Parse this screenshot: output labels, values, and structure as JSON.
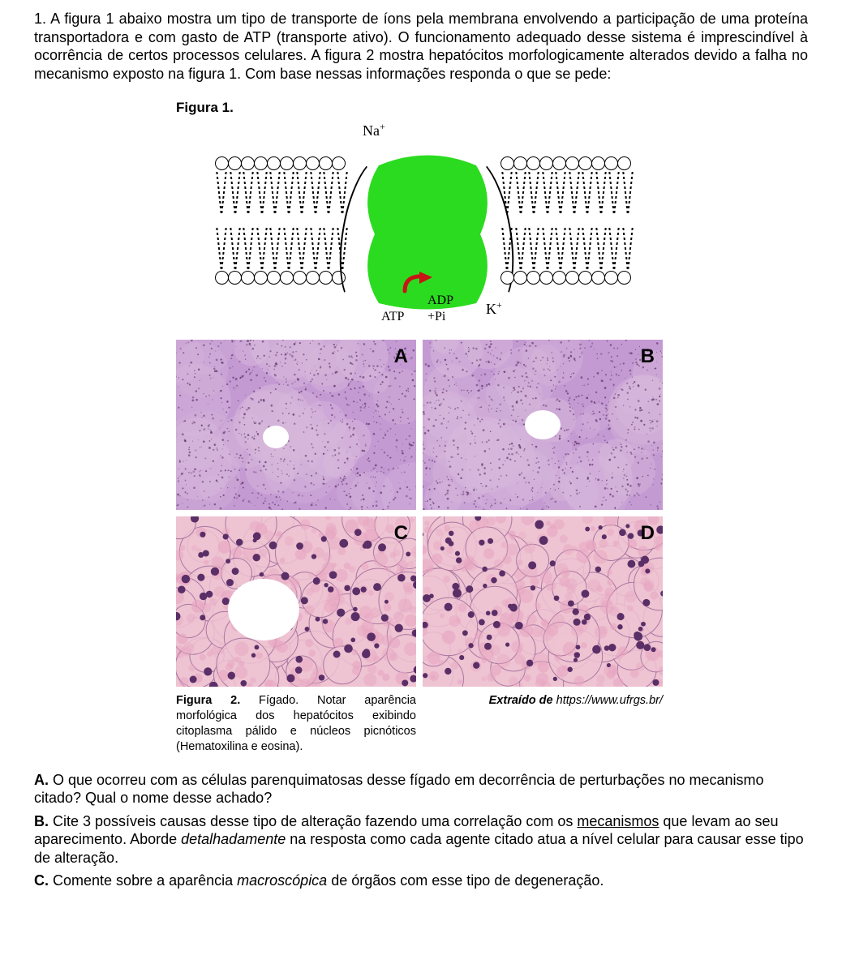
{
  "question": {
    "number_prefix": "1. ",
    "text": "A figura 1 abaixo mostra um tipo de transporte de íons pela membrana envolvendo a participação de uma proteína transportadora e com gasto de ATP (transporte ativo). O funcionamento adequado desse sistema é imprescindível à ocorrência de certos processos celulares. A figura 2 mostra hepatócitos morfologicamente alterados devido a falha no mecanismo exposto na figura 1.  Com base nessas informações responda o que se pede:"
  },
  "figure1": {
    "label": "Figura 1.",
    "na_label": "Na",
    "na_sup": "+",
    "k_label": "K",
    "k_sup": "+",
    "atp_label": "ATP",
    "adp_label": "ADP",
    "pi_label": "+Pi",
    "protein_color": "#2bdb1f",
    "arrow_color": "#c81414",
    "membrane_line_color": "#000000"
  },
  "figure2": {
    "panels": [
      "A",
      "B",
      "C",
      "D"
    ],
    "panel_bg_light": "#d7b8db",
    "panel_bg_mid": "#c49ad3",
    "panel_bg_pink": "#eec3d2",
    "nucleus_color": "#5a2e66",
    "cell_border_color": "#a06a9a",
    "caption_bold": "Figura 2.",
    "caption_rest": " Fígado. Notar aparência morfológica dos hepatócitos exibindo citoplasma pálido e núcleos picnóticos (Hematoxilina e eosina).",
    "source_prefix_italic": "Extraído de ",
    "source_url_italic": "https://www.ufrgs.br/"
  },
  "subquestions": {
    "A": {
      "label": "A. ",
      "text": "O que ocorreu com as células parenquimatosas desse fígado em decorrência de perturbações no mecanismo  citado? Qual o nome desse achado?"
    },
    "B": {
      "label": "B. ",
      "pre": "Cite 3 possíveis causas desse tipo de alteração fazendo uma correlação com os ",
      "underlined": "mecanismos",
      "post1": " que levam ao seu  aparecimento. Aborde ",
      "italic": "detalhadamente",
      "post2": " na resposta como cada agente citado atua a nível celular para causar esse  tipo de alteração."
    },
    "C": {
      "label": "C. ",
      "pre": "Comente sobre a aparência ",
      "italic": "macroscópica",
      "post": " de órgãos com esse tipo de degeneração."
    }
  }
}
